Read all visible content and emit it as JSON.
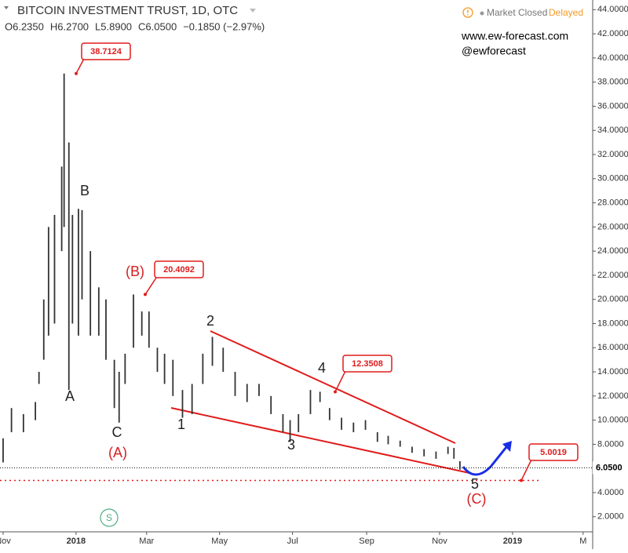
{
  "chart_data": {
    "type": "range-bar",
    "title": "BITCOIN INVESTMENT TRUST, 1D, OTC",
    "legend_values": [
      "O6.2350",
      "H6.2700",
      "L5.8900",
      "C6.0500",
      "−0.1850 (−2.97%)"
    ],
    "market_status": "Market Closed",
    "feed": "Delayed",
    "website": "www.ew-forecast.com",
    "handle": "@ewforecast",
    "logo": "S",
    "x": [
      0,
      7,
      17,
      27,
      30,
      34,
      38,
      43,
      49,
      51,
      55,
      58,
      63,
      66,
      73,
      80,
      86,
      93,
      97,
      102,
      109,
      116,
      122,
      129,
      135,
      142,
      150,
      158,
      167,
      175,
      184,
      194,
      204,
      214,
      224,
      234,
      240,
      247,
      257,
      265,
      273,
      283,
      293,
      303,
      313,
      322,
      332,
      342,
      352,
      362,
      372,
      377,
      382
    ],
    "high": [
      8.5,
      11,
      10.5,
      11.5,
      14,
      20,
      26,
      27,
      31,
      38.7124,
      33,
      27,
      27.5,
      27.4,
      24,
      21,
      20,
      15,
      14,
      15.5,
      20.4092,
      19,
      19,
      16,
      15.5,
      15,
      12.5,
      13,
      15.5,
      16.9,
      16,
      14,
      13,
      13,
      12,
      10.5,
      10,
      10.5,
      12.5,
      12.3508,
      11,
      10.2,
      9.8,
      10,
      9,
      8.7,
      8.3,
      7.8,
      7.6,
      7.4,
      7.8,
      7.7,
      6.6
    ],
    "low": [
      6.5,
      9,
      9,
      10,
      13,
      15,
      17,
      18,
      24,
      26,
      12.5,
      18,
      17,
      20,
      17,
      17,
      15,
      11,
      9.8,
      13,
      16,
      17,
      16,
      14,
      13,
      12,
      10.2,
      10.5,
      13,
      14.5,
      14,
      12,
      11.5,
      12,
      10.5,
      9,
      8.2,
      9,
      10.5,
      11.5,
      10,
      9.2,
      9,
      9.2,
      8.2,
      8,
      7.8,
      7.3,
      7,
      6.8,
      7.2,
      6.8,
      5.9
    ],
    "color": "#333333",
    "xlim": [
      -2.6,
      493
    ],
    "xticks": [
      {
        "value": 0,
        "label": "Nov"
      },
      {
        "value": 61,
        "label": "2018"
      },
      {
        "value": 120,
        "label": "Mar"
      },
      {
        "value": 181,
        "label": "May"
      },
      {
        "value": 242,
        "label": "Jul"
      },
      {
        "value": 304,
        "label": "Sep"
      },
      {
        "value": 365,
        "label": "Nov"
      },
      {
        "value": 426,
        "label": "2019"
      },
      {
        "value": 485,
        "label": "M"
      }
    ],
    "ylim": [
      0.75,
      44.8
    ],
    "yticks": [
      {
        "value": 2,
        "label": "2.0000"
      },
      {
        "value": 4,
        "label": "4.0000"
      },
      {
        "value": 6,
        "label": "6.0000"
      },
      {
        "value": 8,
        "label": "8.0000"
      },
      {
        "value": 10,
        "label": "10.0000"
      },
      {
        "value": 12,
        "label": "12.0000"
      },
      {
        "value": 14,
        "label": "14.0000"
      },
      {
        "value": 16,
        "label": "16.0000"
      },
      {
        "value": 18,
        "label": "18.0000"
      },
      {
        "value": 20,
        "label": "20.0000"
      },
      {
        "value": 22,
        "label": "22.0000"
      },
      {
        "value": 24,
        "label": "24.0000"
      },
      {
        "value": 26,
        "label": "26.0000"
      },
      {
        "value": 28,
        "label": "28.0000"
      },
      {
        "value": 30,
        "label": "30.0000"
      },
      {
        "value": 32,
        "label": "32.0000"
      },
      {
        "value": 34,
        "label": "34.0000"
      },
      {
        "value": 36,
        "label": "36.0000"
      },
      {
        "value": 38,
        "label": "38.0000"
      },
      {
        "value": 40,
        "label": "40.0000"
      },
      {
        "value": 42,
        "label": "42.0000"
      },
      {
        "value": 44,
        "label": "44.0000"
      }
    ],
    "last_price": {
      "value": 6.05,
      "label": "6.0500"
    },
    "price_labels": [
      38.7124,
      20.4092,
      12.3508,
      5.0019
    ],
    "wave_labels": [
      "A",
      "B",
      "C",
      "(A)",
      "(B)",
      "1",
      "2",
      "3",
      "4",
      "5",
      "(C)"
    ]
  }
}
